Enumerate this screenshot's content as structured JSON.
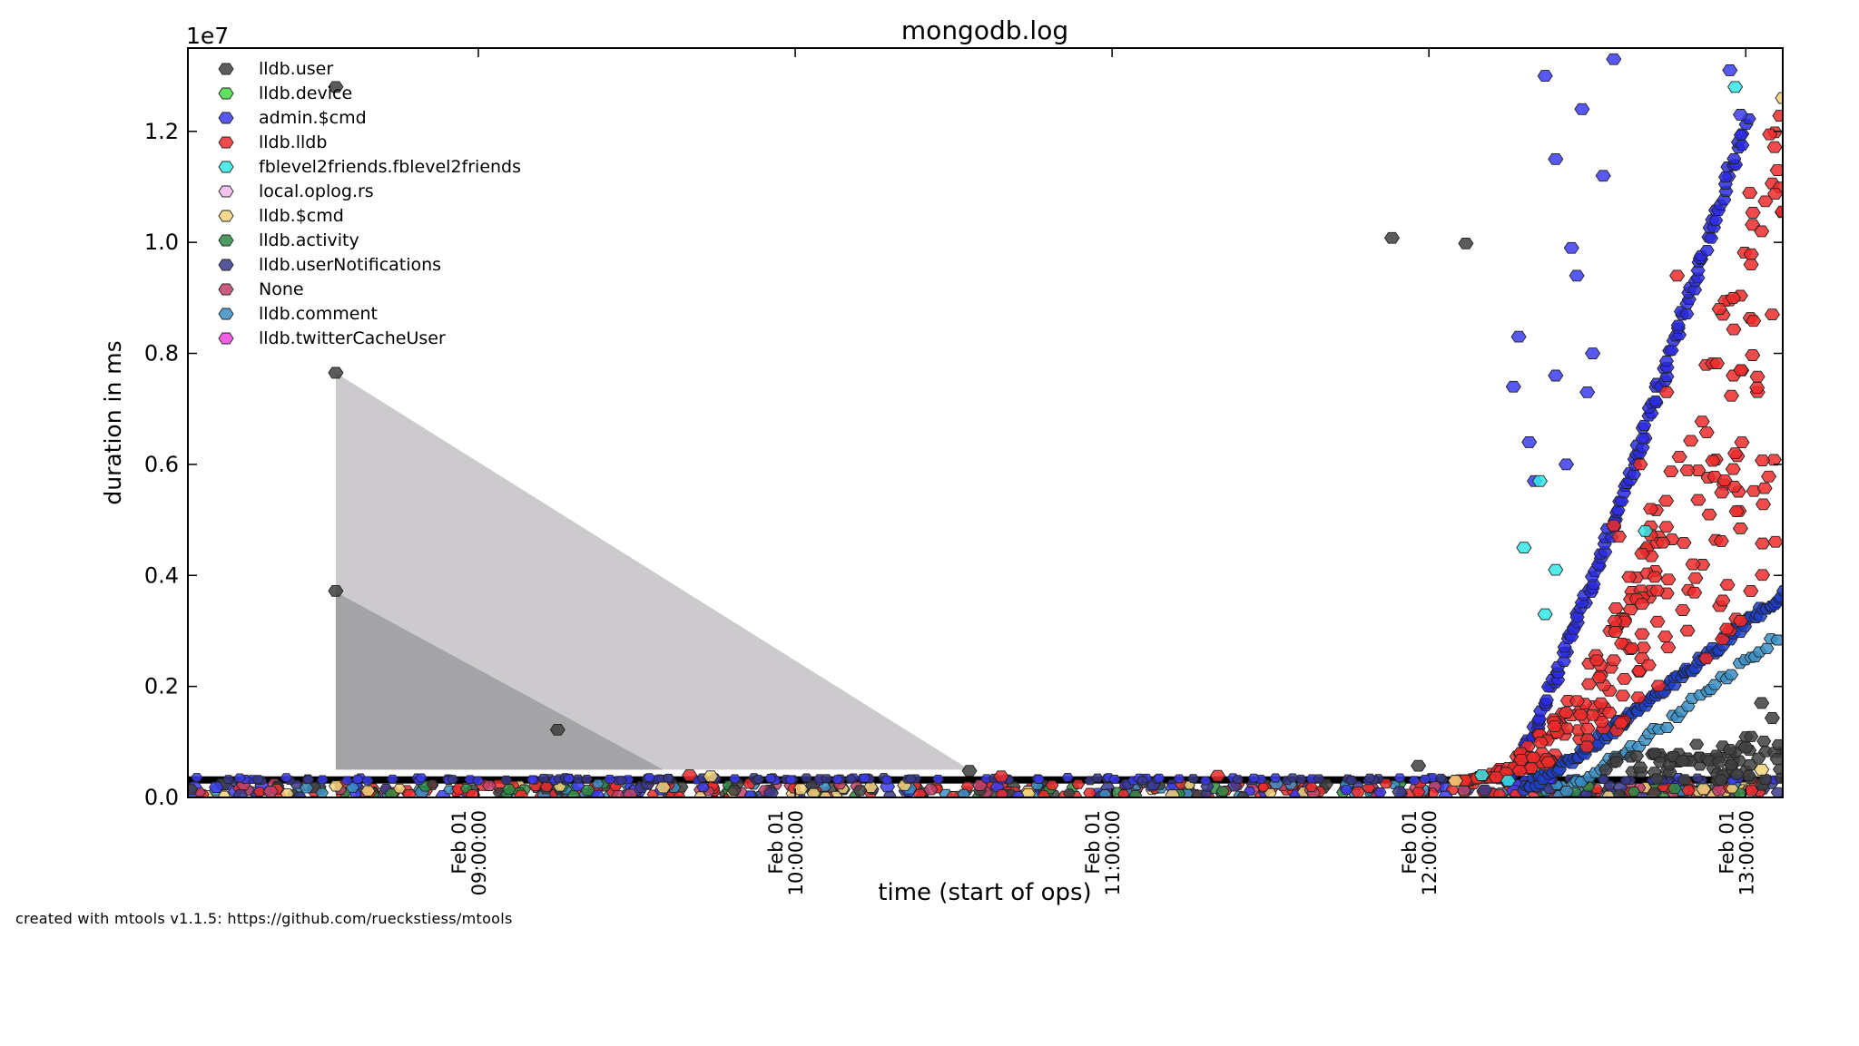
{
  "chart_data": {
    "type": "scatter",
    "title": "mongodb.log",
    "xlabel": "time (start of ops)",
    "ylabel": "duration in ms",
    "y_multiplier": "1e7",
    "xlim": [
      "2015-02-01T08:05:00",
      "2015-02-01T13:07:00"
    ],
    "ylim": [
      0,
      13500000
    ],
    "yticks": [
      {
        "value": 0,
        "label": "0.0"
      },
      {
        "value": 2000000,
        "label": "0.2"
      },
      {
        "value": 4000000,
        "label": "0.4"
      },
      {
        "value": 6000000,
        "label": "0.6"
      },
      {
        "value": 8000000,
        "label": "0.8"
      },
      {
        "value": 10000000,
        "label": "1.0"
      },
      {
        "value": 12000000,
        "label": "1.2"
      }
    ],
    "xticks": [
      {
        "value": "2015-02-01T09:00:00",
        "date": "Feb 01",
        "time": "09:00:00"
      },
      {
        "value": "2015-02-01T10:00:00",
        "date": "Feb 01",
        "time": "10:00:00"
      },
      {
        "value": "2015-02-01T11:00:00",
        "date": "Feb 01",
        "time": "11:00:00"
      },
      {
        "value": "2015-02-01T12:00:00",
        "date": "Feb 01",
        "time": "12:00:00"
      },
      {
        "value": "2015-02-01T13:00:00",
        "date": "Feb 01",
        "time": "13:00:00"
      }
    ],
    "legend_position": "top-left",
    "grid": false,
    "legend": [
      {
        "name": "lldb.user",
        "color": "#404040"
      },
      {
        "name": "lldb.device",
        "color": "#44dd44"
      },
      {
        "name": "admin.$cmd",
        "color": "#3b3bf0"
      },
      {
        "name": "lldb.lldb",
        "color": "#ee2a2a"
      },
      {
        "name": "fblevel2friends.fblevel2friends",
        "color": "#33e8e8"
      },
      {
        "name": "local.oplog.rs",
        "color": "#f5b8ef"
      },
      {
        "name": "lldb.$cmd",
        "color": "#f2d27a"
      },
      {
        "name": "lldb.activity",
        "color": "#2e8b44"
      },
      {
        "name": "lldb.userNotifications",
        "color": "#3a3a8c"
      },
      {
        "name": "None",
        "color": "#c0406a"
      },
      {
        "name": "lldb.comment",
        "color": "#3a8fc4"
      },
      {
        "name": "lldb.twitterCacheUser",
        "color": "#ee44e0"
      }
    ],
    "shaded_regions": [
      {
        "polygon": [
          [
            "2015-02-01T08:33:00",
            7650000
          ],
          [
            "2015-02-01T10:33:00",
            500000
          ],
          [
            "2015-02-01T08:33:00",
            500000
          ]
        ],
        "color": "#cccacd"
      },
      {
        "polygon": [
          [
            "2015-02-01T08:33:00",
            3700000
          ],
          [
            "2015-02-01T09:35:00",
            500000
          ],
          [
            "2015-02-01T08:33:00",
            500000
          ]
        ],
        "color": "#a4a3a5"
      }
    ],
    "baseline_band": {
      "y": [
        250000,
        380000
      ],
      "color": "#000000"
    },
    "series": [
      {
        "name": "lldb.user",
        "points": [
          [
            "2015-02-01T08:33:00",
            7650000
          ],
          [
            "2015-02-01T08:33:00",
            3720000
          ],
          [
            "2015-02-01T08:33:00",
            12800000
          ],
          [
            "2015-02-01T09:15:00",
            1220000
          ],
          [
            "2015-02-01T10:33:00",
            480000
          ],
          [
            "2015-02-01T11:53:00",
            10080000
          ],
          [
            "2015-02-01T11:58:00",
            570000
          ],
          [
            "2015-02-01T12:07:00",
            9980000
          ],
          [
            "2015-02-01T12:40:00",
            540000
          ],
          [
            "2015-02-01T12:48:00",
            660000
          ],
          [
            "2015-02-01T12:55:00",
            640000
          ],
          [
            "2015-02-01T13:00:00",
            900000
          ],
          [
            "2015-02-01T13:03:00",
            1700000
          ],
          [
            "2015-02-01T13:05:00",
            1430000
          ],
          [
            "2015-02-01T13:06:00",
            690000
          ]
        ]
      },
      {
        "name": "admin.$cmd",
        "points": [
          [
            "2015-02-01T12:20:00",
            5700000
          ],
          [
            "2015-02-01T12:22:00",
            13000000
          ],
          [
            "2015-02-01T12:24:00",
            11500000
          ],
          [
            "2015-02-01T12:27:00",
            9900000
          ],
          [
            "2015-02-01T12:29:00",
            12400000
          ],
          [
            "2015-02-01T12:31:00",
            8000000
          ],
          [
            "2015-02-01T12:33:00",
            11200000
          ],
          [
            "2015-02-01T12:35:00",
            13300000
          ],
          [
            "2015-02-01T12:57:00",
            13100000
          ],
          [
            "2015-02-01T12:59:00",
            12300000
          ],
          [
            "2015-02-01T12:16:00",
            7400000
          ],
          [
            "2015-02-01T12:17:00",
            8300000
          ],
          [
            "2015-02-01T12:19:00",
            6400000
          ],
          [
            "2015-02-01T12:24:00",
            7600000
          ],
          [
            "2015-02-01T12:26:00",
            6000000
          ],
          [
            "2015-02-01T12:28:00",
            9400000
          ],
          [
            "2015-02-01T12:30:00",
            7300000
          ]
        ]
      },
      {
        "name": "lldb.lldb",
        "points": [
          [
            "2015-02-01T09:40:00",
            400000
          ],
          [
            "2015-02-01T10:39:00",
            380000
          ],
          [
            "2015-02-01T11:20:00",
            390000
          ],
          [
            "2015-02-01T12:35:00",
            4900000
          ],
          [
            "2015-02-01T12:40:00",
            6000000
          ],
          [
            "2015-02-01T12:42:00",
            5200000
          ],
          [
            "2015-02-01T12:45:00",
            7300000
          ],
          [
            "2015-02-01T12:50:00",
            4200000
          ],
          [
            "2015-02-01T12:55:00",
            8800000
          ],
          [
            "2015-02-01T12:58:00",
            6200000
          ],
          [
            "2015-02-01T13:01:00",
            9600000
          ],
          [
            "2015-02-01T13:03:00",
            10200000
          ],
          [
            "2015-02-01T13:05:00",
            8700000
          ],
          [
            "2015-02-01T13:06:00",
            11300000
          ],
          [
            "2015-02-01T12:47:00",
            9400000
          ],
          [
            "2015-02-01T12:36:00",
            4700000
          ]
        ]
      },
      {
        "name": "fblevel2friends.fblevel2friends",
        "points": [
          [
            "2015-02-01T12:18:00",
            4500000
          ],
          [
            "2015-02-01T12:24:00",
            4100000
          ],
          [
            "2015-02-01T12:22:00",
            3300000
          ],
          [
            "2015-02-01T12:21:00",
            5700000
          ],
          [
            "2015-02-01T12:58:00",
            12800000
          ],
          [
            "2015-02-01T12:41:00",
            4800000
          ],
          [
            "2015-02-01T12:10:00",
            400000
          ],
          [
            "2015-02-01T12:15:00",
            300000
          ]
        ]
      },
      {
        "name": "lldb.$cmd",
        "points": [
          [
            "2015-02-01T09:35:00",
            180000
          ],
          [
            "2015-02-01T09:44:00",
            380000
          ],
          [
            "2015-02-01T10:01:00",
            150000
          ],
          [
            "2015-02-01T12:05:00",
            300000
          ],
          [
            "2015-02-01T13:07:00",
            12600000
          ],
          [
            "2015-02-01T13:03:00",
            500000
          ],
          [
            "2015-02-01T12:52:00",
            150000
          ]
        ]
      }
    ]
  },
  "footer": {
    "credit": "created with mtools v1.1.5: https://github.com/rueckstiess/mtools"
  }
}
